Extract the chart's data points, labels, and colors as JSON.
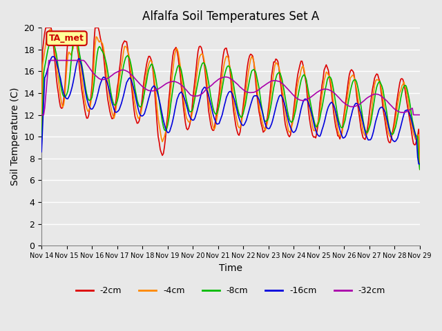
{
  "title": "Alfalfa Soil Temperatures Set A",
  "xlabel": "Time",
  "ylabel": "Soil Temperature (C)",
  "ylim": [
    0,
    20
  ],
  "yticks": [
    0,
    2,
    4,
    6,
    8,
    10,
    12,
    14,
    16,
    18,
    20
  ],
  "background_color": "#e8e8e8",
  "plot_bg_color": "#e8e8e8",
  "annotation_label": "TA_met",
  "annotation_color": "#cc0000",
  "annotation_bg": "#ffff99",
  "legend_entries": [
    "-2cm",
    "-4cm",
    "-8cm",
    "-16cm",
    "-32cm"
  ],
  "line_colors": [
    "#dd0000",
    "#ff8800",
    "#00bb00",
    "#0000dd",
    "#aa00aa"
  ],
  "line_widths": [
    1.5,
    1.5,
    1.5,
    1.5,
    1.5
  ],
  "x_labels": [
    "Nov 14",
    "Nov 15",
    "Nov 16",
    "Nov 17",
    "Nov 18",
    "Nov 19",
    "Nov 20",
    "Nov 21",
    "Nov 22",
    "Nov 23",
    "Nov 24",
    "Nov 25",
    "Nov 26",
    "Nov 27",
    "Nov 28",
    "Nov 29"
  ],
  "num_points": 361,
  "days": 15
}
